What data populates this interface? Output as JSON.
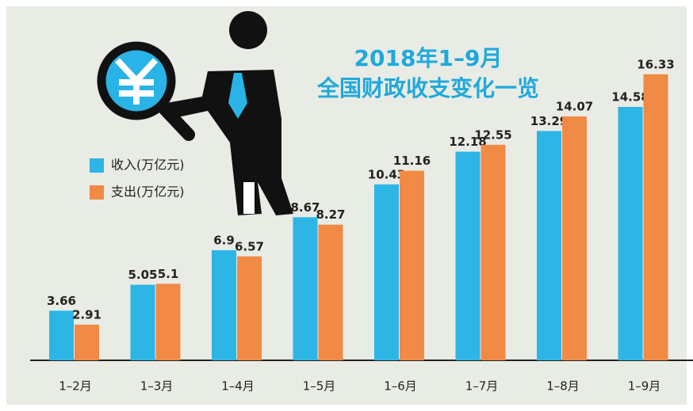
{
  "chart_data": {
    "type": "bar",
    "title": "2018年1–9月",
    "subtitle": "全国财政收支变化一览",
    "categories": [
      "1–2月",
      "1–3月",
      "1–4月",
      "1–5月",
      "1–6月",
      "1–7月",
      "1–8月",
      "1–9月"
    ],
    "series": [
      {
        "name": "收入(万亿元)",
        "color": "#2db5e6",
        "values": [
          3.66,
          5.05,
          6.9,
          8.67,
          10.43,
          12.18,
          13.29,
          14.58
        ]
      },
      {
        "name": "支出(万亿元)",
        "color": "#f08a45",
        "values": [
          2.91,
          5.1,
          6.57,
          8.27,
          11.16,
          12.55,
          14.07,
          16.33
        ]
      }
    ],
    "ylim": [
      1,
      17
    ]
  }
}
